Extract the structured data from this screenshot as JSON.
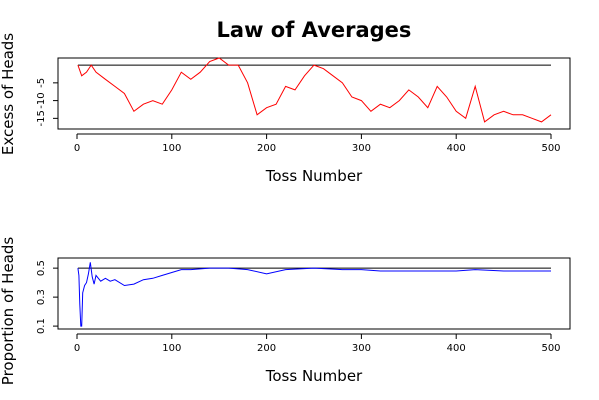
{
  "chart_data": [
    {
      "type": "line",
      "title": "Law of Averages",
      "xlabel": "Toss Number",
      "ylabel": "Excess of Heads",
      "xlim": [
        0,
        500
      ],
      "ylim": [
        -18,
        2
      ],
      "xticks": [
        "0",
        "100",
        "200",
        "300",
        "400",
        "500"
      ],
      "yticks": [
        "-15",
        "-10",
        "-5"
      ],
      "reference_line": 0,
      "grid": false,
      "series": [
        {
          "color": "#ff0000",
          "x": [
            1,
            5,
            10,
            15,
            20,
            30,
            40,
            50,
            60,
            70,
            80,
            90,
            100,
            110,
            120,
            130,
            140,
            150,
            160,
            170,
            180,
            190,
            200,
            210,
            220,
            230,
            240,
            250,
            260,
            270,
            280,
            290,
            300,
            310,
            320,
            330,
            340,
            350,
            360,
            370,
            380,
            390,
            400,
            410,
            420,
            430,
            440,
            450,
            460,
            470,
            480,
            490,
            500
          ],
          "values": [
            0,
            -3,
            -2,
            0,
            -2,
            -4,
            -6,
            -8,
            -13,
            -11,
            -10,
            -11,
            -7,
            -2,
            -4,
            -2,
            1,
            2,
            0,
            0,
            -5,
            -14,
            -12,
            -11,
            -6,
            -7,
            -3,
            0,
            -1,
            -3,
            -5,
            -9,
            -10,
            -13,
            -11,
            -12,
            -10,
            -7,
            -9,
            -12,
            -6,
            -9,
            -13,
            -15,
            -6,
            -16,
            -14,
            -13,
            -14,
            -14,
            -15,
            -16,
            -14
          ]
        }
      ]
    },
    {
      "type": "line",
      "xlabel": "Toss Number",
      "ylabel": "Proportion of Heads",
      "xlim": [
        0,
        500
      ],
      "ylim": [
        0.08,
        0.57
      ],
      "xticks": [
        "0",
        "100",
        "200",
        "300",
        "400",
        "500"
      ],
      "yticks": [
        "0.1",
        "0.3",
        "0.5"
      ],
      "reference_line": 0.5,
      "grid": false,
      "series": [
        {
          "color": "#0000ff",
          "x": [
            1,
            2,
            3,
            4,
            5,
            6,
            8,
            10,
            12,
            14,
            16,
            18,
            20,
            25,
            30,
            35,
            40,
            50,
            60,
            70,
            80,
            90,
            100,
            110,
            120,
            140,
            150,
            160,
            180,
            200,
            220,
            250,
            280,
            300,
            320,
            350,
            380,
            400,
            420,
            450,
            480,
            500
          ],
          "values": [
            0.5,
            0.45,
            0.25,
            0.1,
            0.1,
            0.33,
            0.38,
            0.4,
            0.46,
            0.54,
            0.44,
            0.39,
            0.45,
            0.41,
            0.43,
            0.41,
            0.42,
            0.38,
            0.39,
            0.42,
            0.43,
            0.45,
            0.47,
            0.49,
            0.49,
            0.5,
            0.5,
            0.5,
            0.49,
            0.46,
            0.49,
            0.5,
            0.49,
            0.49,
            0.48,
            0.48,
            0.48,
            0.48,
            0.49,
            0.48,
            0.48,
            0.48
          ]
        }
      ]
    }
  ]
}
